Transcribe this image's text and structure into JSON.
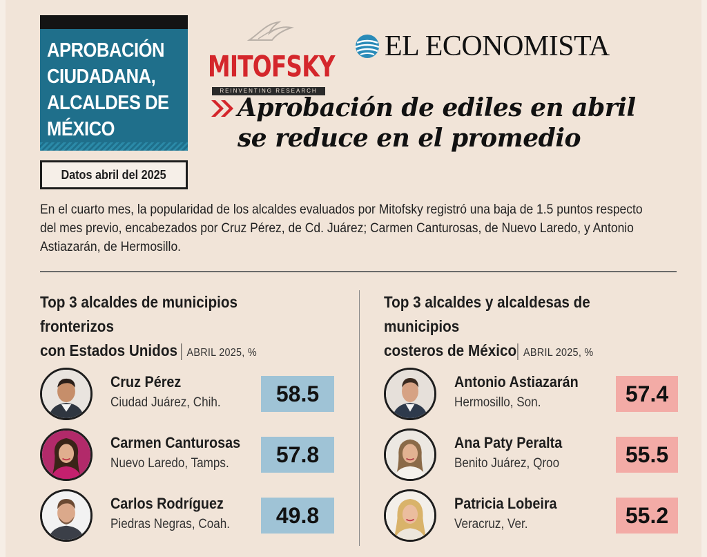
{
  "title_block": {
    "lines": [
      "APROBACIÓN",
      "CIUDADANA,",
      "ALCALDES DE",
      "MÉXICO"
    ],
    "date": "Datos abril del 2025"
  },
  "logos": {
    "mitofsky_name": "MITOFSKY",
    "mitofsky_tagline": "REINVENTING RESEARCH",
    "economista_name": "EL ECONOMISTA"
  },
  "headline": {
    "line1": "Aprobación de ediles en abril",
    "line2": "se reduce en el promedio"
  },
  "summary": {
    "lines": [
      "En el cuarto mes, la popularidad de los alcaldes evaluados por Mitofsky registró una baja de 1.5 puntos respecto",
      "del mes previo, encabezados por Cruz Pérez, de Cd. Juárez; Carmen Canturosas, de Nuevo Laredo, y Antonio",
      "Astiazarán, de Hermosillo."
    ]
  },
  "left_column": {
    "title_line1": "Top 3 alcaldes de municipios fronterizos",
    "title_line2": "con Estados Unidos",
    "unit": "ABRIL 2025, %",
    "people": [
      {
        "name": "Cruz Pérez",
        "city": "Ciudad Juárez, Chih.",
        "score": "58.5"
      },
      {
        "name": "Carmen Canturosas",
        "city": "Nuevo Laredo, Tamps.",
        "score": "57.8"
      },
      {
        "name": "Carlos Rodríguez",
        "city": "Piedras Negras, Coah.",
        "score": "49.8"
      }
    ]
  },
  "right_column": {
    "title_line1": "Top 3 alcaldes y alcaldesas de municipios",
    "title_line2": "costeros de México",
    "unit": "ABRIL 2025, %",
    "people": [
      {
        "name": "Antonio Astiazarán",
        "city": "Hermosillo, Son.",
        "score": "57.4"
      },
      {
        "name": "Ana Paty Peralta",
        "city": "Benito Juárez, Qroo",
        "score": "55.5"
      },
      {
        "name": "Patricia Lobeira",
        "city": "Veracruz, Ver.",
        "score": "55.2"
      }
    ]
  },
  "colors": {
    "title_bg": "#1f6f8b",
    "left_score_bg": "#9fc3d6",
    "right_score_bg": "#f3aba6",
    "mitofsky_red": "#d4262b",
    "headline_chevron": "#d4262b"
  }
}
